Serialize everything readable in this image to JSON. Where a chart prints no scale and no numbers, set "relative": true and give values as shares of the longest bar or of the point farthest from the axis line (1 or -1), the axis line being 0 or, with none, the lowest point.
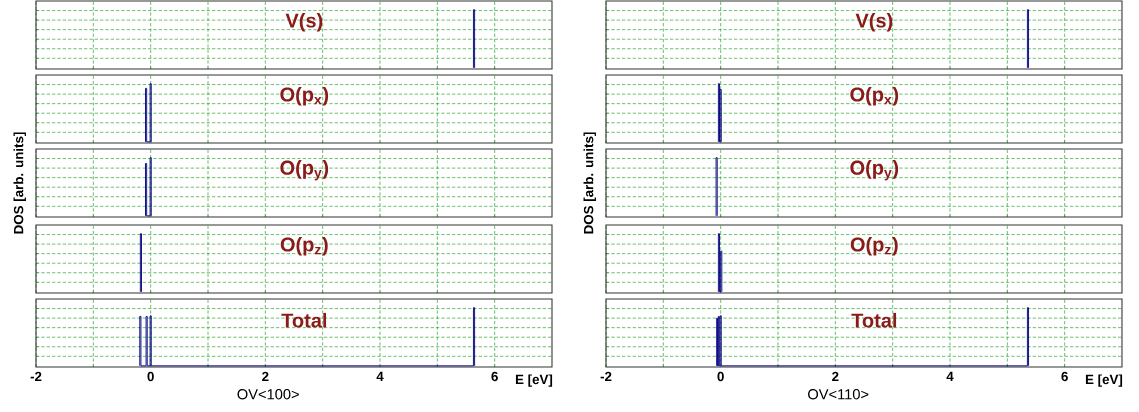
{
  "chart_data": [
    {
      "type": "line",
      "title": "V(s)",
      "relative": true,
      "color": "#000080",
      "grid": true,
      "tick_labels": false,
      "xlim": [
        -2,
        7
      ],
      "xticks": [
        -2,
        {
          "value": -1,
          "label": null
        },
        0,
        {
          "value": 1,
          "label": null
        },
        2,
        {
          "value": 3,
          "label": null
        },
        4,
        {
          "value": 5,
          "label": null
        },
        6
      ],
      "x": [
        5.63,
        5.63,
        5.65,
        5.65
      ],
      "values": [
        0,
        1,
        1,
        0
      ]
    },
    {
      "type": "line",
      "title": "O(p$_{x}$)",
      "relative": true,
      "color": "#000080",
      "grid": true,
      "tick_labels": false,
      "xlim": [
        -2,
        7
      ],
      "xticks": [
        -2,
        {
          "value": -1,
          "label": null
        },
        0,
        {
          "value": 1,
          "label": null
        },
        2,
        {
          "value": 3,
          "label": null
        },
        4,
        {
          "value": 5,
          "label": null
        },
        6
      ],
      "x": [
        -0.09,
        -0.09,
        -0.07,
        -0.07,
        -0.01,
        -0.01,
        0.01,
        0.01
      ],
      "values": [
        0,
        0.92,
        0.92,
        0,
        0,
        1,
        1,
        0
      ]
    },
    {
      "type": "line",
      "title": "O(p$_{y}$)",
      "ylabel": "DOS  [arb. units]",
      "relative": true,
      "color": "#000080",
      "grid": true,
      "tick_labels": false,
      "xlim": [
        -2,
        7
      ],
      "xticks": [
        -2,
        {
          "value": -1,
          "label": null
        },
        0,
        {
          "value": 1,
          "label": null
        },
        2,
        {
          "value": 3,
          "label": null
        },
        4,
        {
          "value": 5,
          "label": null
        },
        6
      ],
      "x": [
        -0.09,
        -0.09,
        -0.07,
        -0.07,
        -0.01,
        -0.01,
        0.01,
        0.01
      ],
      "values": [
        0,
        0.9,
        0.9,
        0,
        0,
        1,
        1,
        0
      ]
    },
    {
      "type": "line",
      "title": "O(p$_{z}$)",
      "relative": true,
      "color": "#000080",
      "grid": true,
      "tick_labels": false,
      "xlim": [
        -2,
        7
      ],
      "xticks": [
        -2,
        {
          "value": -1,
          "label": null
        },
        0,
        {
          "value": 1,
          "label": null
        },
        2,
        {
          "value": 3,
          "label": null
        },
        4,
        {
          "value": 5,
          "label": null
        },
        6
      ],
      "x": [
        -0.18,
        -0.18,
        -0.16,
        -0.16
      ],
      "values": [
        0,
        1,
        1,
        0
      ]
    },
    {
      "type": "line",
      "title": "Total",
      "xlabel": "E [eV]",
      "annotations": [
        "OV<100>"
      ],
      "relative": true,
      "color": "#000080",
      "grid": true,
      "tick_labels": "x",
      "xlim": [
        -2,
        7
      ],
      "xticks": [
        -2,
        {
          "value": -1,
          "label": null
        },
        0,
        {
          "value": 1,
          "label": null
        },
        2,
        {
          "value": 3,
          "label": null
        },
        4,
        {
          "value": 5,
          "label": null
        },
        6
      ],
      "x": [
        -0.19,
        -0.19,
        -0.17,
        -0.17,
        -0.08,
        -0.08,
        -0.06,
        -0.06,
        -0.01,
        -0.01,
        0.01,
        0.01,
        5.63,
        5.63,
        5.65,
        5.65
      ],
      "values": [
        0,
        0.85,
        0.85,
        0,
        0,
        0.85,
        0.85,
        0,
        0,
        0.86,
        0.86,
        0,
        0,
        1,
        1,
        0
      ]
    },
    {
      "type": "line",
      "title": "V(s)",
      "relative": true,
      "color": "#000080",
      "grid": true,
      "tick_labels": false,
      "xlim": [
        -2,
        7
      ],
      "xticks": [
        -2,
        {
          "value": -1,
          "label": null
        },
        0,
        {
          "value": 1,
          "label": null
        },
        2,
        {
          "value": 3,
          "label": null
        },
        4,
        {
          "value": 5,
          "label": null
        },
        6
      ],
      "x": [
        5.35,
        5.35,
        5.37,
        5.37
      ],
      "values": [
        0,
        1,
        1,
        0
      ]
    },
    {
      "type": "line",
      "title": "O(p$_{x}$)",
      "relative": true,
      "color": "#000080",
      "grid": true,
      "tick_labels": false,
      "xlim": [
        -2,
        7
      ],
      "xticks": [
        -2,
        {
          "value": -1,
          "label": null
        },
        0,
        {
          "value": 1,
          "label": null
        },
        2,
        {
          "value": 3,
          "label": null
        },
        4,
        {
          "value": 5,
          "label": null
        },
        6
      ],
      "x": [
        -0.04,
        -0.04,
        -0.02,
        -0.02,
        -0.01,
        -0.01,
        0.01,
        0.01
      ],
      "values": [
        0,
        1,
        1,
        0,
        0,
        0.9,
        0.9,
        0
      ]
    },
    {
      "type": "line",
      "title": "O(p$_{y}$)",
      "ylabel": "DOS  [arb. units]",
      "relative": true,
      "color": "#000080",
      "grid": true,
      "tick_labels": false,
      "xlim": [
        -2,
        7
      ],
      "xticks": [
        -2,
        {
          "value": -1,
          "label": null
        },
        0,
        {
          "value": 1,
          "label": null
        },
        2,
        {
          "value": 3,
          "label": null
        },
        4,
        {
          "value": 5,
          "label": null
        },
        6
      ],
      "x": [
        -0.08,
        -0.08,
        -0.06,
        -0.06
      ],
      "values": [
        0,
        1,
        1,
        0
      ]
    },
    {
      "type": "line",
      "title": "O(p$_{z}$)",
      "relative": true,
      "color": "#000080",
      "grid": true,
      "tick_labels": false,
      "xlim": [
        -2,
        7
      ],
      "xticks": [
        -2,
        {
          "value": -1,
          "label": null
        },
        0,
        {
          "value": 1,
          "label": null
        },
        2,
        {
          "value": 3,
          "label": null
        },
        4,
        {
          "value": 5,
          "label": null
        },
        6
      ],
      "x": [
        -0.04,
        -0.04,
        -0.02,
        -0.02,
        0.0,
        0.0,
        0.02,
        0.02
      ],
      "values": [
        0,
        1,
        1,
        0,
        0,
        0.7,
        0.7,
        0
      ]
    },
    {
      "type": "line",
      "title": "Total",
      "xlabel": "E [eV]",
      "annotations": [
        "OV<110>"
      ],
      "relative": true,
      "color": "#000080",
      "grid": true,
      "tick_labels": "x",
      "xlim": [
        -2,
        7
      ],
      "xticks": [
        -2,
        {
          "value": -1,
          "label": null
        },
        0,
        {
          "value": 1,
          "label": null
        },
        2,
        {
          "value": 3,
          "label": null
        },
        4,
        {
          "value": 5,
          "label": null
        },
        6
      ],
      "x": [
        -0.07,
        -0.07,
        -0.055,
        -0.055,
        -0.04,
        -0.04,
        -0.025,
        -0.025,
        -0.01,
        -0.01,
        0.01,
        0.01,
        5.35,
        5.35,
        5.37,
        5.37
      ],
      "values": [
        0,
        0.82,
        0.82,
        0,
        0,
        0.85,
        0.85,
        0,
        0,
        0.86,
        0.86,
        0,
        0,
        1,
        1,
        0
      ]
    }
  ]
}
